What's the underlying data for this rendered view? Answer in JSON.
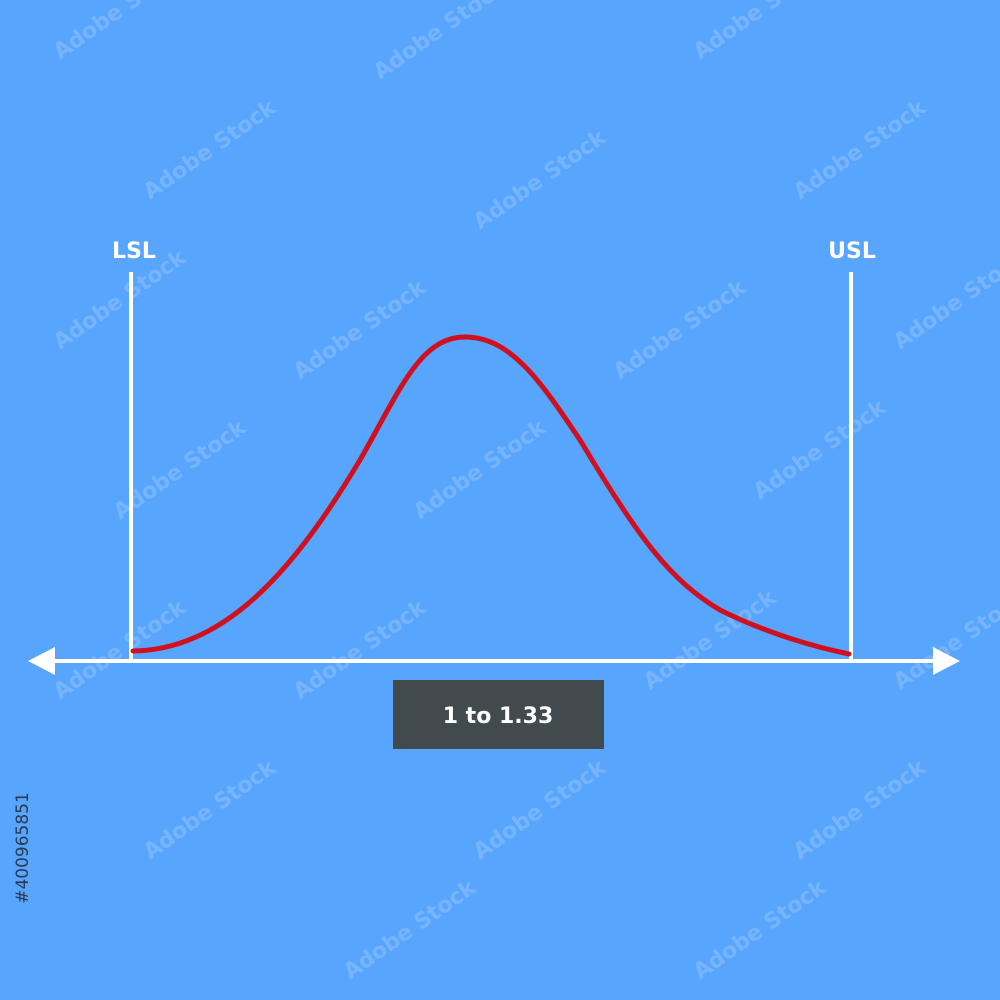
{
  "limits": {
    "lower": "LSL",
    "upper": "USL"
  },
  "range_label": "1 to 1.33",
  "watermark": "Adobe Stock",
  "image_id": "#400965851"
}
